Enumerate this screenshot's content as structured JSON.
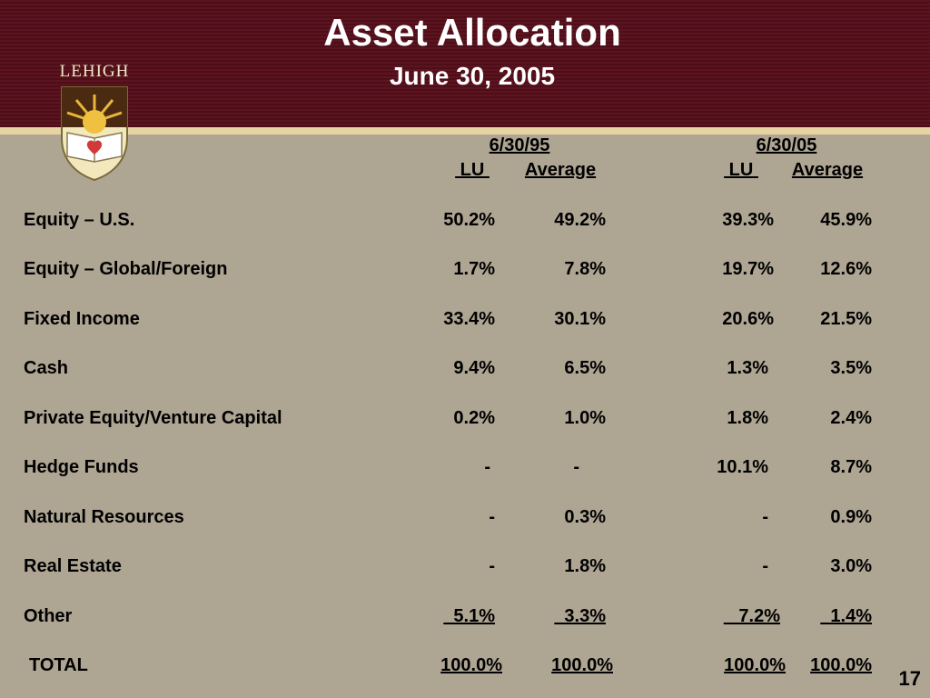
{
  "title": "Asset Allocation",
  "subtitle": "June 30, 2005",
  "logo_text": "LEHIGH",
  "colors": {
    "header": "#5e1420",
    "background": "#aea593",
    "rule": "#e8d3a3"
  },
  "columns": {
    "group1": {
      "date": "6/30/95",
      "lu": " LU ",
      "average": "Average"
    },
    "group2": {
      "date": "6/30/05",
      "lu": " LU ",
      "average": "Average"
    }
  },
  "rows": [
    {
      "label": "Equity – U.S.",
      "lu95": "50.2%",
      "avg95": "49.2%",
      "lu05": "39.3%",
      "avg05": "45.9%"
    },
    {
      "label": "Equity – Global/Foreign",
      "lu95": "1.7%",
      "avg95": "7.8%",
      "lu05": "19.7%",
      "avg05": "12.6%"
    },
    {
      "label": "Fixed Income",
      "lu95": "33.4%",
      "avg95": "30.1%",
      "lu05": "20.6%",
      "avg05": "21.5%"
    },
    {
      "label": "Cash",
      "lu95": "9.4%",
      "avg95": "6.5%",
      "lu05": "1.3%",
      "avg05": "3.5%"
    },
    {
      "label": "Private Equity/Venture Capital",
      "lu95": "0.2%",
      "avg95": "1.0%",
      "lu05": "1.8%",
      "avg05": "2.4%"
    },
    {
      "label": "Hedge Funds",
      "lu95": "-",
      "avg95": "-",
      "lu05": "10.1%",
      "avg05": "8.7%"
    },
    {
      "label": "Natural Resources",
      "lu95": "-",
      "avg95": "0.3%",
      "lu05": "-",
      "avg05": "0.9%"
    },
    {
      "label": "Real Estate",
      "lu95": "-",
      "avg95": "1.8%",
      "lu05": "-",
      "avg05": "3.0%"
    },
    {
      "label": "Other",
      "lu95": "  5.1%",
      "avg95": "  3.3%",
      "lu05": "   7.2%",
      "avg05": "  1.4%"
    }
  ],
  "total": {
    "label": "TOTAL",
    "lu95": "100.0%",
    "avg95": "100.0%",
    "lu05": "100.0%",
    "avg05": "100.0%"
  },
  "page_number": "17"
}
